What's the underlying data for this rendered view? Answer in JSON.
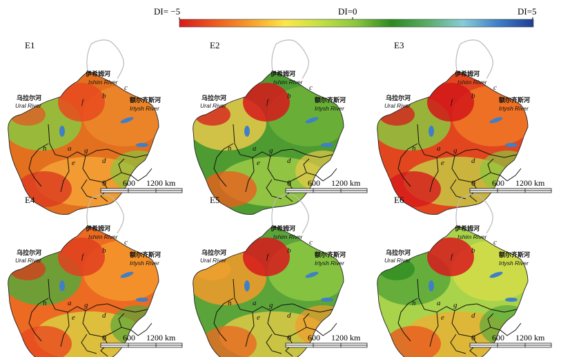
{
  "colorbar": {
    "left_label": "DI= −5",
    "mid_label": "DI=0",
    "right_label": "DI=5",
    "colors": [
      "#d7191c",
      "#ed5a21",
      "#f69d2e",
      "#fde74c",
      "#c2df45",
      "#8cc63f",
      "#2b8a1f",
      "#5aac66",
      "#86cdd8",
      "#3e7fc7",
      "#1f3e96"
    ]
  },
  "region_labels": {
    "ural_cn": "乌拉尔河",
    "ural_en": "Ural River",
    "ishim_cn": "伊希姆河",
    "ishim_en": "Ishim River",
    "irtysh_cn": "额尔齐斯河",
    "irtysh_en": "Irtysh River",
    "letters": [
      "a",
      "b",
      "c",
      "d",
      "e",
      "f",
      "g",
      "h"
    ]
  },
  "scale_bar": {
    "labels": [
      "0",
      "600",
      "1200 km"
    ]
  },
  "panels": [
    {
      "id": "E1",
      "title": "E1",
      "palette": [
        "#e2701f",
        "#ee8a2a",
        "#f5a93a",
        "#8cc63f"
      ],
      "hot": [
        "#e84a1f",
        "#dc3a1f",
        "#e05a25"
      ],
      "show_letter_labels": true
    },
    {
      "id": "E2",
      "title": "E2",
      "palette": [
        "#4e9b31",
        "#6fb33a",
        "#a9d24a",
        "#e8c94a"
      ],
      "hot": [
        "#d7191c",
        "#e8601f",
        "#d7191c"
      ],
      "show_letter_labels": true
    },
    {
      "id": "E3",
      "title": "E3",
      "palette": [
        "#e2461f",
        "#f07a25",
        "#c3d949",
        "#8cc63f"
      ],
      "hot": [
        "#d2181a",
        "#d7191c",
        "#d7191c"
      ],
      "show_letter_labels": true
    },
    {
      "id": "E4",
      "title": "E4",
      "palette": [
        "#ec6a22",
        "#f59a2d",
        "#d9dc47",
        "#5aa73a"
      ],
      "hot": [
        "#e0401f",
        "#e84a1f",
        "#d7391c"
      ],
      "show_letter_labels": true
    },
    {
      "id": "E5",
      "title": "E5",
      "palette": [
        "#5ba43a",
        "#8fc942",
        "#eecf48",
        "#f29b2c"
      ],
      "hot": [
        "#d7191c",
        "#e96a23",
        "#f0a030"
      ],
      "show_letter_labels": true
    },
    {
      "id": "E6",
      "title": "E6",
      "palette": [
        "#a9d34a",
        "#d6dd49",
        "#f2ad33",
        "#5aa73a"
      ],
      "hot": [
        "#d7191c",
        "#e85a1f",
        "#2b8a1f"
      ],
      "show_letter_labels": true
    }
  ]
}
